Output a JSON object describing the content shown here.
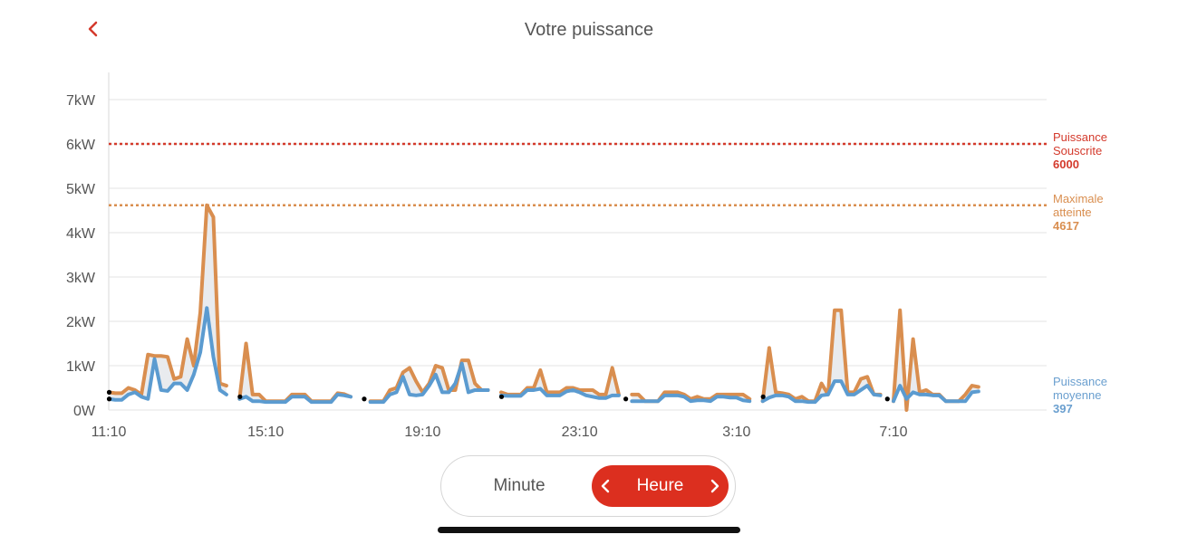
{
  "header": {
    "title": "Votre puissance",
    "back_icon": "chevron-left-icon"
  },
  "colors": {
    "accent": "#dc2f1f",
    "souscrite": "#d43a2c",
    "maximale": "#d98e4f",
    "moyenne": "#6a9fcf",
    "peak_series": "#d98e4f",
    "avg_series": "#5b9bd0"
  },
  "toggle": {
    "minute_label": "Minute",
    "heure_label": "Heure",
    "selected": "Heure",
    "prev_icon": "chevron-left-icon",
    "next_icon": "chevron-right-icon"
  },
  "chart_data": {
    "type": "line",
    "title": "Votre puissance",
    "y_ticks": [
      "0W",
      "1kW",
      "2kW",
      "3kW",
      "4kW",
      "5kW",
      "6kW",
      "7kW"
    ],
    "ylim": [
      0,
      7400
    ],
    "x_ticks": [
      "11:10",
      "15:10",
      "19:10",
      "23:10",
      "3:10",
      "7:10"
    ],
    "x_interval_minutes": 10,
    "grid": true,
    "references": [
      {
        "name": "Puissance Souscrite",
        "lines": [
          "Puissance",
          "Souscrite"
        ],
        "value": 6000,
        "value_label": "6000",
        "style": "dotted",
        "color": "#d43a2c"
      },
      {
        "name": "Maximale atteinte",
        "lines": [
          "Maximale",
          "atteinte"
        ],
        "value": 4617,
        "value_label": "4617",
        "style": "dotted",
        "color": "#d98e4f"
      },
      {
        "name": "Puissance moyenne",
        "lines": [
          "Puissance",
          "moyenne"
        ],
        "value": 397,
        "value_label": "397",
        "style": "label",
        "color": "#6a9fcf"
      }
    ],
    "gap_markers": [
      0,
      0,
      20,
      39,
      60,
      79,
      100,
      119
    ],
    "series": [
      {
        "color": "#d98e4f",
        "segments": [
          {
            "start": 0,
            "values": [
              400,
              380,
              380,
              500,
              450,
              350,
              1250,
              1220,
              1220,
              1200,
              700,
              750,
              1600,
              1000,
              2200,
              4617,
              4350,
              600,
              550
            ]
          },
          {
            "start": 20,
            "values": [
              250,
              1500,
              350,
              350,
              200,
              200,
              200,
              200,
              350,
              350,
              350,
              200,
              200,
              200,
              200,
              380,
              360,
              300
            ]
          },
          {
            "start": 40,
            "values": [
              200,
              200,
              200,
              450,
              500,
              850,
              950,
              650,
              400,
              600,
              1000,
              950,
              450,
              450,
              1120,
              1120,
              600,
              450,
              450
            ]
          },
          {
            "start": 60,
            "values": [
              400,
              350,
              350,
              350,
              500,
              500,
              900,
              400,
              400,
              400,
              500,
              500,
              450,
              450,
              450,
              350,
              350,
              950,
              350
            ]
          },
          {
            "start": 80,
            "values": [
              350,
              350,
              200,
              200,
              200,
              400,
              400,
              400,
              350,
              250,
              300,
              250,
              250,
              350,
              350,
              350,
              350,
              350,
              250
            ]
          },
          {
            "start": 100,
            "values": [
              200,
              1400,
              400,
              380,
              350,
              250,
              300,
              200,
              200,
              600,
              350,
              2250,
              2250,
              400,
              400,
              700,
              750,
              350,
              350
            ]
          },
          {
            "start": 120,
            "values": [
              200,
              2250,
              0,
              1600,
              400,
              450,
              350,
              350,
              200,
              200,
              200,
              350,
              550,
              520
            ]
          }
        ]
      },
      {
        "color": "#5b9bd0",
        "segments": [
          {
            "start": 0,
            "values": [
              250,
              230,
              230,
              350,
              400,
              300,
              250,
              1150,
              450,
              430,
              600,
              600,
              450,
              800,
              1300,
              2300,
              1200,
              450,
              350
            ]
          },
          {
            "start": 20,
            "values": [
              250,
              300,
              200,
              200,
              180,
              180,
              180,
              180,
              300,
              300,
              300,
              180,
              180,
              180,
              180,
              350,
              330,
              300
            ]
          },
          {
            "start": 40,
            "values": [
              180,
              180,
              180,
              350,
              400,
              750,
              350,
              330,
              350,
              550,
              800,
              400,
              400,
              600,
              1050,
              400,
              450,
              450,
              450
            ]
          },
          {
            "start": 60,
            "values": [
              330,
              320,
              320,
              320,
              450,
              450,
              480,
              330,
              330,
              330,
              420,
              450,
              400,
              330,
              300,
              270,
              270,
              330,
              330
            ]
          },
          {
            "start": 80,
            "values": [
              200,
              200,
              200,
              200,
              200,
              330,
              330,
              330,
              300,
              200,
              220,
              220,
              200,
              300,
              300,
              280,
              280,
              220,
              200
            ]
          },
          {
            "start": 100,
            "values": [
              200,
              280,
              330,
              330,
              300,
              200,
              200,
              180,
              180,
              330,
              350,
              650,
              650,
              350,
              350,
              450,
              550,
              350,
              330
            ]
          },
          {
            "start": 120,
            "values": [
              200,
              550,
              250,
              400,
              350,
              350,
              330,
              330,
              200,
              200,
              200,
              200,
              400,
              420
            ]
          }
        ]
      }
    ]
  }
}
